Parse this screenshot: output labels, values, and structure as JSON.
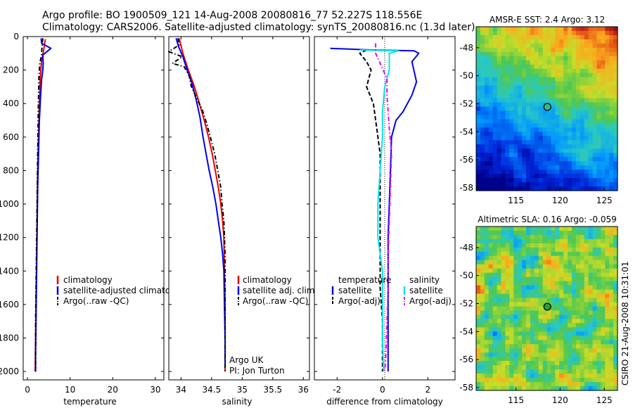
{
  "header": {
    "line1": "Argo profile: BO 1900509_121 14-Aug-2008 20080816_77 52.227S 118.556E",
    "line2": "Climatology: CARS2006. Satellite-adjusted climatology: synTS_20080816.nc (1.3d later)"
  },
  "credit": "CSIRO 21-Aug-2008 10:31:01",
  "colors": {
    "climatology": "#ee0000",
    "satellite": "#0000ee",
    "argo": "#000000",
    "sat_salinity": "#00e5ee",
    "argo_adj_salinity": "#ee00ee"
  },
  "chart_data": [
    {
      "type": "line",
      "id": "temperature-profile",
      "xlabel": "temperature",
      "xlim": [
        -1,
        32
      ],
      "ylim": [
        2050,
        0
      ],
      "xticks": [
        0,
        10,
        20,
        30
      ],
      "yticks": [
        0,
        200,
        400,
        600,
        800,
        1000,
        1200,
        1400,
        1600,
        1800,
        2000
      ],
      "legend": [
        "climatology",
        "satellite-adjusted climatology",
        "Argo(..raw -QC)"
      ],
      "series": [
        {
          "name": "climatology",
          "color": "#ee0000",
          "style": "solid",
          "points": [
            [
              4.2,
              15
            ],
            [
              3.8,
              80
            ],
            [
              3.3,
              150
            ],
            [
              3.0,
              250
            ],
            [
              2.8,
              400
            ],
            [
              2.6,
              600
            ],
            [
              2.4,
              800
            ],
            [
              2.3,
              1000
            ],
            [
              2.2,
              1200
            ],
            [
              2.1,
              1400
            ],
            [
              2.0,
              1600
            ],
            [
              1.9,
              1800
            ],
            [
              1.8,
              2000
            ]
          ]
        },
        {
          "name": "satellite-adjusted climatology",
          "color": "#0000ee",
          "style": "solid",
          "points": [
            [
              3.2,
              10
            ],
            [
              3.3,
              40
            ],
            [
              5.5,
              70
            ],
            [
              3.6,
              110
            ],
            [
              3.7,
              160
            ],
            [
              3.6,
              200
            ],
            [
              3.3,
              260
            ],
            [
              3.1,
              350
            ],
            [
              2.8,
              500
            ],
            [
              2.6,
              700
            ],
            [
              2.4,
              900
            ],
            [
              2.3,
              1100
            ],
            [
              2.2,
              1300
            ],
            [
              2.1,
              1500
            ],
            [
              2.0,
              1700
            ],
            [
              1.9,
              1900
            ],
            [
              1.9,
              2000
            ]
          ]
        },
        {
          "name": "Argo(..raw -QC)",
          "color": "#000000",
          "style": "dashdot",
          "points": [
            [
              3.6,
              10
            ],
            [
              3.4,
              60
            ],
            [
              3.3,
              110
            ],
            [
              2.9,
              160
            ],
            [
              2.7,
              230
            ],
            [
              2.6,
              350
            ],
            [
              2.5,
              500
            ],
            [
              2.4,
              700
            ],
            [
              2.3,
              900
            ],
            [
              2.2,
              1100
            ],
            [
              2.1,
              1300
            ],
            [
              2.0,
              1500
            ],
            [
              1.9,
              1700
            ],
            [
              1.9,
              1900
            ],
            [
              1.9,
              2000
            ]
          ]
        }
      ]
    },
    {
      "type": "line",
      "id": "salinity-profile",
      "xlabel": "salinity",
      "xlim": [
        33.8,
        36.1
      ],
      "ylim": [
        2050,
        0
      ],
      "xticks": [
        34,
        34.5,
        35,
        35.5,
        36
      ],
      "legend": [
        "climatology",
        "satellite adj. clim.",
        "Argo(..raw -QC)"
      ],
      "annotation": [
        "Argo UK",
        "PI: Jon Turton"
      ],
      "series": [
        {
          "name": "climatology",
          "color": "#ee0000",
          "style": "solid",
          "points": [
            [
              33.97,
              10
            ],
            [
              34.03,
              100
            ],
            [
              34.12,
              200
            ],
            [
              34.22,
              300
            ],
            [
              34.3,
              400
            ],
            [
              34.38,
              500
            ],
            [
              34.45,
              600
            ],
            [
              34.51,
              700
            ],
            [
              34.56,
              800
            ],
            [
              34.61,
              900
            ],
            [
              34.65,
              1000
            ],
            [
              34.68,
              1100
            ],
            [
              34.7,
              1200
            ],
            [
              34.71,
              1400
            ],
            [
              34.72,
              1600
            ],
            [
              34.72,
              1800
            ],
            [
              34.72,
              2000
            ]
          ]
        },
        {
          "name": "satellite adj. clim.",
          "color": "#0000ee",
          "style": "solid",
          "points": [
            [
              33.92,
              10
            ],
            [
              33.96,
              60
            ],
            [
              34.03,
              120
            ],
            [
              34.1,
              200
            ],
            [
              34.18,
              280
            ],
            [
              34.25,
              380
            ],
            [
              34.31,
              480
            ],
            [
              34.36,
              600
            ],
            [
              34.41,
              700
            ],
            [
              34.46,
              800
            ],
            [
              34.52,
              900
            ],
            [
              34.57,
              1000
            ],
            [
              34.61,
              1100
            ],
            [
              34.65,
              1200
            ],
            [
              34.68,
              1300
            ],
            [
              34.7,
              1400
            ],
            [
              34.71,
              1600
            ],
            [
              34.72,
              1800
            ],
            [
              34.72,
              1970
            ]
          ]
        },
        {
          "name": "Argo(..raw -QC)",
          "color": "#000000",
          "style": "dashdot",
          "points": [
            [
              33.95,
              10
            ],
            [
              33.97,
              50
            ],
            [
              33.8,
              90
            ],
            [
              34.02,
              120
            ],
            [
              33.86,
              160
            ],
            [
              34.05,
              180
            ],
            [
              34.13,
              230
            ],
            [
              34.17,
              300
            ],
            [
              34.26,
              370
            ],
            [
              34.35,
              440
            ],
            [
              34.42,
              520
            ],
            [
              34.48,
              600
            ],
            [
              34.55,
              700
            ],
            [
              34.6,
              800
            ],
            [
              34.65,
              900
            ],
            [
              34.67,
              1000
            ],
            [
              34.7,
              1100
            ],
            [
              34.72,
              1300
            ],
            [
              34.72,
              1500
            ],
            [
              34.72,
              1700
            ],
            [
              34.72,
              1900
            ],
            [
              34.72,
              2000
            ]
          ]
        }
      ]
    },
    {
      "type": "line",
      "id": "difference-profile",
      "xlabel": "difference from climatology",
      "xlim": [
        -3,
        3.2
      ],
      "ylim": [
        2050,
        0
      ],
      "xticks": [
        -2,
        0,
        2
      ],
      "legend_left_title": "temperature",
      "legend_right_title": "salinity",
      "legend_left": [
        "satellite",
        "Argo(-adj)"
      ],
      "legend_right": [
        "satellite",
        "Argo(-adj)"
      ],
      "series": [
        {
          "name": "temperature satellite",
          "color": "#0000ee",
          "style": "solid",
          "points": [
            [
              -2.3,
              70
            ],
            [
              -0.5,
              80
            ],
            [
              1.4,
              85
            ],
            [
              1.6,
              100
            ],
            [
              1.3,
              150
            ],
            [
              1.5,
              270
            ],
            [
              1.3,
              350
            ],
            [
              0.9,
              450
            ],
            [
              0.6,
              500
            ],
            [
              0.4,
              600
            ],
            [
              0.35,
              800
            ],
            [
              0.3,
              1000
            ],
            [
              0.25,
              1200
            ],
            [
              0.25,
              1400
            ],
            [
              0.25,
              1600
            ],
            [
              0.25,
              1800
            ],
            [
              0.25,
              2000
            ]
          ]
        },
        {
          "name": "temperature Argo(-adj)",
          "color": "#000000",
          "style": "dashed",
          "points": [
            [
              -0.7,
              80
            ],
            [
              -1.0,
              100
            ],
            [
              -0.7,
              150
            ],
            [
              -0.5,
              200
            ],
            [
              -0.7,
              300
            ],
            [
              -0.4,
              400
            ],
            [
              -0.3,
              500
            ],
            [
              -0.1,
              700
            ],
            [
              -0.1,
              900
            ],
            [
              -0.1,
              1100
            ],
            [
              -0.1,
              1300
            ],
            [
              -0.1,
              1500
            ],
            [
              0,
              1700
            ],
            [
              0,
              1900
            ],
            [
              0,
              2000
            ]
          ]
        },
        {
          "name": "salinity satellite",
          "color": "#00e5ee",
          "style": "solid",
          "points": [
            [
              -1.0,
              80
            ],
            [
              0.7,
              85
            ],
            [
              0.3,
              100
            ],
            [
              0.3,
              200
            ],
            [
              0.1,
              300
            ],
            [
              0,
              450
            ],
            [
              0,
              600
            ],
            [
              -0.1,
              800
            ],
            [
              -0.2,
              1000
            ],
            [
              -0.2,
              1200
            ],
            [
              0,
              1400
            ],
            [
              0,
              1600
            ],
            [
              0,
              1800
            ],
            [
              0.05,
              2000
            ]
          ]
        },
        {
          "name": "salinity Argo(-adj)",
          "color": "#ee00ee",
          "style": "dashdot",
          "points": [
            [
              -0.3,
              40
            ],
            [
              -0.3,
              100
            ],
            [
              0.2,
              250
            ],
            [
              0.2,
              350
            ],
            [
              0.3,
              550
            ],
            [
              0.4,
              700
            ],
            [
              0.35,
              900
            ],
            [
              0.3,
              1100
            ],
            [
              0.25,
              1300
            ],
            [
              0.25,
              1500
            ],
            [
              0.2,
              1700
            ],
            [
              0.15,
              1900
            ],
            [
              0.1,
              2000
            ]
          ]
        }
      ]
    },
    {
      "type": "heatmap",
      "id": "sst-map",
      "title": "AMSR-E SST: 2.4 Argo: 3.12",
      "xlim": [
        110.5,
        126.5
      ],
      "ylim": [
        -58.2,
        -46.5
      ],
      "xticks": [
        115,
        120,
        125
      ],
      "yticks": [
        -48,
        -50,
        -52,
        -54,
        -56,
        -58
      ],
      "marker": [
        118.556,
        -52.227
      ]
    },
    {
      "type": "heatmap",
      "id": "sla-map",
      "title": "Altimetric SLA: 0.16 Argo: -0.059",
      "xlim": [
        110.5,
        126.5
      ],
      "ylim": [
        -58.2,
        -46.5
      ],
      "xticks": [
        115,
        120,
        125
      ],
      "yticks": [
        -48,
        -50,
        -52,
        -54,
        -56,
        -58
      ],
      "marker": [
        118.556,
        -52.227
      ]
    }
  ]
}
